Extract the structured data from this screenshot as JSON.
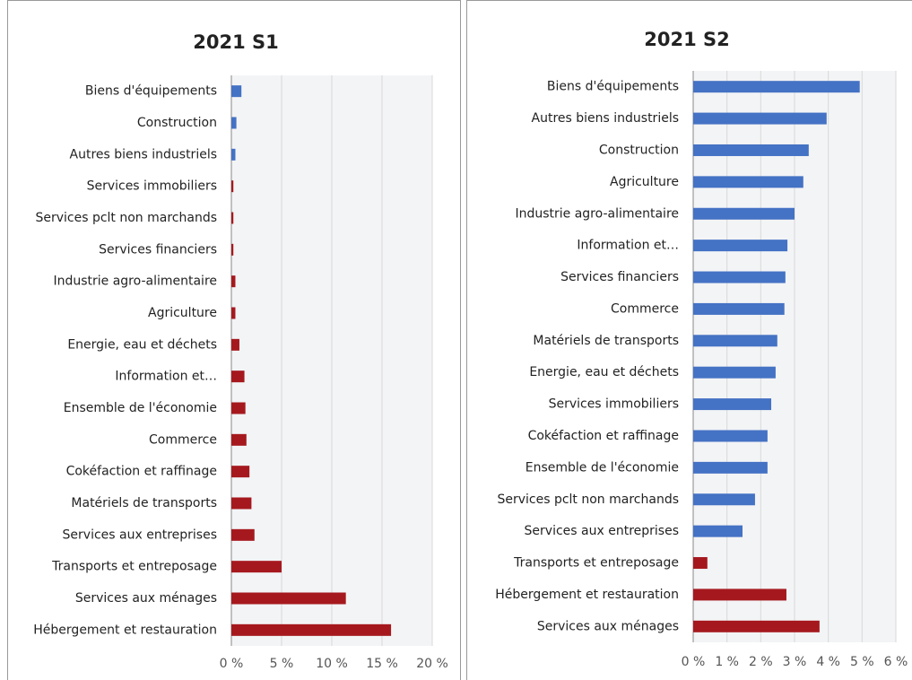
{
  "chart_data": [
    {
      "type": "bar",
      "title": "2021 S1",
      "categories": [
        "Biens d'équipements",
        "Construction",
        "Autres biens industriels",
        "Services immobiliers",
        "Services pclt non marchands",
        "Services financiers",
        "Industrie agro-alimentaire",
        "Agriculture",
        "Energie, eau et déchets",
        "Information et…",
        "Ensemble de l'économie",
        "Commerce",
        "Cokéfaction et raffinage",
        "Matériels de transports",
        "Services aux entreprises",
        "Transports et entreposage",
        "Services aux ménages",
        "Hébergement et restauration"
      ],
      "values": [
        1.0,
        0.5,
        0.4,
        0.2,
        0.2,
        0.2,
        0.4,
        0.4,
        0.8,
        1.3,
        1.4,
        1.5,
        1.8,
        2.0,
        2.3,
        5.0,
        11.4,
        15.9
      ],
      "colors": [
        "#4472c4",
        "#4472c4",
        "#4472c4",
        "#a5191e",
        "#a5191e",
        "#a5191e",
        "#a5191e",
        "#a5191e",
        "#a5191e",
        "#a5191e",
        "#a5191e",
        "#a5191e",
        "#a5191e",
        "#a5191e",
        "#a5191e",
        "#a5191e",
        "#a5191e",
        "#a5191e"
      ],
      "xlim": [
        0,
        20
      ],
      "xticks": [
        {
          "value": 0,
          "label": "0 %"
        },
        {
          "value": 5,
          "label": "5 %"
        },
        {
          "value": 10,
          "label": "10 %"
        },
        {
          "value": 15,
          "label": "15 %"
        },
        {
          "value": 20,
          "label": "20 %"
        }
      ],
      "grid": true
    },
    {
      "type": "bar",
      "title": "2021 S2",
      "categories": [
        "Biens d'équipements",
        "Autres biens industriels",
        "Construction",
        "Agriculture",
        "Industrie agro-alimentaire",
        "Information et…",
        "Services financiers",
        "Commerce",
        "Matériels de transports",
        "Energie, eau et déchets",
        "Services immobiliers",
        "Cokéfaction et raffinage",
        "Ensemble de l'économie",
        "Services pclt non marchands",
        "Services aux entreprises",
        "Transports et entreposage",
        "Hébergement et restauration",
        "Services aux ménages"
      ],
      "values": [
        4.93,
        3.95,
        3.42,
        3.26,
        3.0,
        2.79,
        2.73,
        2.7,
        2.49,
        2.44,
        2.31,
        2.2,
        2.2,
        1.83,
        1.46,
        0.42,
        2.76,
        3.74
      ],
      "colors": [
        "#4472c4",
        "#4472c4",
        "#4472c4",
        "#4472c4",
        "#4472c4",
        "#4472c4",
        "#4472c4",
        "#4472c4",
        "#4472c4",
        "#4472c4",
        "#4472c4",
        "#4472c4",
        "#4472c4",
        "#4472c4",
        "#4472c4",
        "#a5191e",
        "#a5191e",
        "#a5191e"
      ],
      "xlim": [
        0,
        6
      ],
      "xticks": [
        {
          "value": 0,
          "label": "0 %"
        },
        {
          "value": 1,
          "label": "1 %"
        },
        {
          "value": 2,
          "label": "2 %"
        },
        {
          "value": 3,
          "label": "3 %"
        },
        {
          "value": 4,
          "label": "4 %"
        },
        {
          "value": 5,
          "label": "5 %"
        },
        {
          "value": 6,
          "label": "6 %"
        }
      ],
      "grid": true
    }
  ]
}
